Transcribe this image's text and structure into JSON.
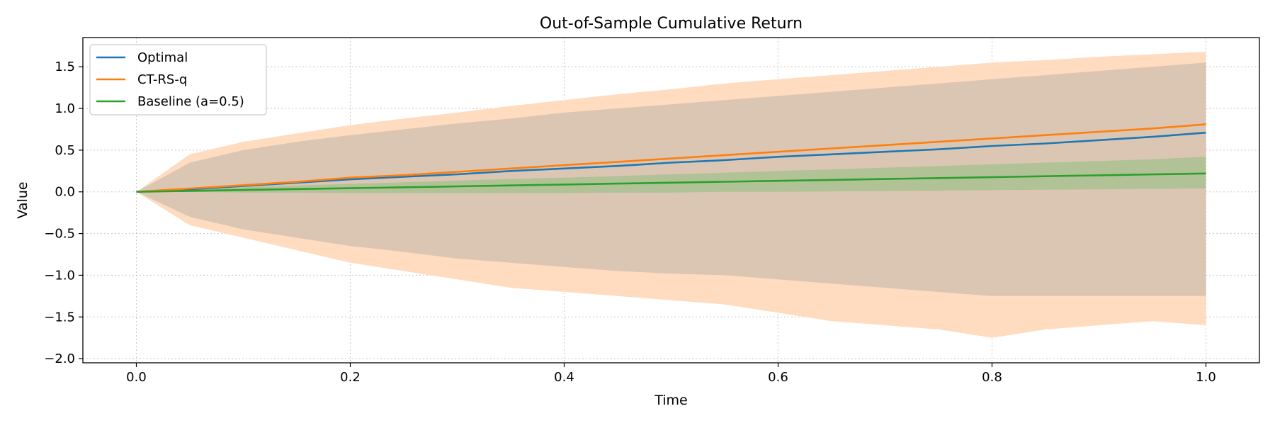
{
  "chart_data": {
    "type": "line",
    "title": "Out-of-Sample Cumulative Return",
    "xlabel": "Time",
    "ylabel": "Value",
    "xlim": [
      -0.05,
      1.05
    ],
    "ylim": [
      -2.05,
      1.85
    ],
    "grid": true,
    "legend_position": "top-left",
    "x_ticks": [
      0.0,
      0.2,
      0.4,
      0.6,
      0.8,
      1.0
    ],
    "x_tick_labels": [
      "0.0",
      "0.2",
      "0.4",
      "0.6",
      "0.8",
      "1.0"
    ],
    "y_ticks": [
      -2.0,
      -1.5,
      -1.0,
      -0.5,
      0.0,
      0.5,
      1.0,
      1.5
    ],
    "y_tick_labels": [
      "−2.0",
      "−1.5",
      "−1.0",
      "−0.5",
      "0.0",
      "0.5",
      "1.0",
      "1.5"
    ],
    "x": [
      0.0,
      0.05,
      0.1,
      0.15,
      0.2,
      0.25,
      0.3,
      0.35,
      0.4,
      0.45,
      0.5,
      0.55,
      0.6,
      0.65,
      0.7,
      0.75,
      0.8,
      0.85,
      0.9,
      0.95,
      1.0
    ],
    "series": [
      {
        "name": "Optimal",
        "color": "#1f77b4",
        "values": [
          0.0,
          0.03,
          0.07,
          0.11,
          0.15,
          0.18,
          0.21,
          0.25,
          0.28,
          0.31,
          0.35,
          0.38,
          0.42,
          0.45,
          0.48,
          0.51,
          0.55,
          0.58,
          0.62,
          0.66,
          0.71
        ],
        "band_lower": [
          0.0,
          -0.3,
          -0.45,
          -0.55,
          -0.65,
          -0.72,
          -0.8,
          -0.85,
          -0.9,
          -0.95,
          -0.98,
          -1.0,
          -1.05,
          -1.1,
          -1.15,
          -1.2,
          -1.25,
          -1.25,
          -1.25,
          -1.25,
          -1.25
        ],
        "band_upper": [
          0.0,
          0.35,
          0.5,
          0.6,
          0.68,
          0.75,
          0.82,
          0.88,
          0.95,
          1.0,
          1.05,
          1.1,
          1.15,
          1.2,
          1.25,
          1.3,
          1.35,
          1.4,
          1.45,
          1.5,
          1.55
        ]
      },
      {
        "name": "CT-RS-q",
        "color": "#ff7f0e",
        "values": [
          0.0,
          0.04,
          0.08,
          0.12,
          0.17,
          0.2,
          0.24,
          0.28,
          0.32,
          0.36,
          0.4,
          0.44,
          0.48,
          0.52,
          0.56,
          0.6,
          0.64,
          0.68,
          0.72,
          0.76,
          0.81
        ],
        "band_lower": [
          0.0,
          -0.4,
          -0.55,
          -0.7,
          -0.85,
          -0.95,
          -1.05,
          -1.15,
          -1.2,
          -1.25,
          -1.3,
          -1.35,
          -1.45,
          -1.55,
          -1.6,
          -1.65,
          -1.75,
          -1.65,
          -1.6,
          -1.55,
          -1.6
        ],
        "band_upper": [
          0.0,
          0.45,
          0.6,
          0.7,
          0.8,
          0.88,
          0.95,
          1.03,
          1.1,
          1.17,
          1.23,
          1.3,
          1.35,
          1.4,
          1.45,
          1.5,
          1.55,
          1.58,
          1.62,
          1.65,
          1.68
        ]
      },
      {
        "name": "Baseline (a=0.5)",
        "color": "#2ca02c",
        "values": [
          0.0,
          0.011,
          0.022,
          0.033,
          0.044,
          0.055,
          0.066,
          0.077,
          0.088,
          0.099,
          0.11,
          0.121,
          0.132,
          0.143,
          0.154,
          0.165,
          0.176,
          0.187,
          0.198,
          0.209,
          0.22
        ],
        "band_lower": [
          0.0,
          0.0,
          -0.01,
          -0.01,
          -0.015,
          -0.015,
          -0.015,
          -0.015,
          -0.015,
          -0.01,
          -0.01,
          0.0,
          0.0,
          0.005,
          0.01,
          0.015,
          0.02,
          0.025,
          0.03,
          0.035,
          0.04
        ],
        "band_upper": [
          0.0,
          0.03,
          0.055,
          0.075,
          0.095,
          0.115,
          0.135,
          0.155,
          0.17,
          0.19,
          0.21,
          0.23,
          0.25,
          0.27,
          0.29,
          0.31,
          0.33,
          0.35,
          0.37,
          0.39,
          0.42
        ]
      }
    ]
  }
}
